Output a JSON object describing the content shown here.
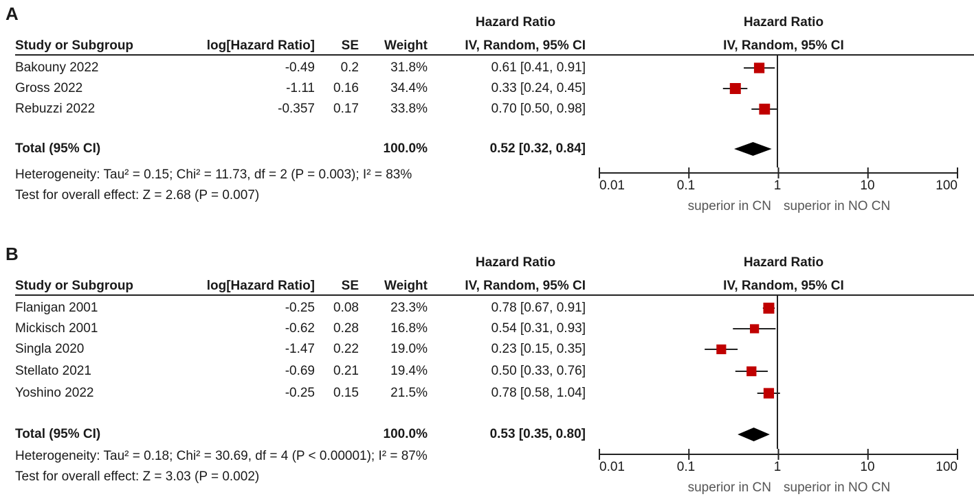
{
  "panels": [
    {
      "letter": "A",
      "header": {
        "hr_top": "Hazard Ratio",
        "study": "Study or Subgroup",
        "loghr": "log[Hazard Ratio]",
        "se": "SE",
        "weight": "Weight",
        "ci": "IV, Random, 95% CI",
        "plot_top": "Hazard Ratio",
        "plot_sub": "IV, Random, 95% CI"
      },
      "studies": [
        {
          "name": "Bakouny 2022",
          "loghr": "-0.49",
          "se": "0.2",
          "weight": "31.8%",
          "ci": "0.61 [0.41, 0.91]"
        },
        {
          "name": "Gross 2022",
          "loghr": "-1.11",
          "se": "0.16",
          "weight": "34.4%",
          "ci": "0.33 [0.24, 0.45]"
        },
        {
          "name": "Rebuzzi 2022",
          "loghr": "-0.357",
          "se": "0.17",
          "weight": "33.8%",
          "ci": "0.70 [0.50, 0.98]"
        }
      ],
      "total": {
        "label": "Total (95% CI)",
        "weight": "100.0%",
        "ci": "0.52 [0.32, 0.84]"
      },
      "heterogeneity": "Heterogeneity: Tau² = 0.15; Chi² = 11.73, df = 2 (P = 0.003); I² = 83%",
      "overall": "Test for overall effect: Z = 2.68 (P = 0.007)",
      "axis": {
        "ticks": [
          "0.01",
          "0.1",
          "1",
          "10",
          "100"
        ],
        "left_label": "superior in CN",
        "right_label": "superior in NO CN"
      }
    },
    {
      "letter": "B",
      "header": {
        "hr_top": "Hazard Ratio",
        "study": "Study or Subgroup",
        "loghr": "log[Hazard Ratio]",
        "se": "SE",
        "weight": "Weight",
        "ci": "IV, Random, 95% CI",
        "plot_top": "Hazard Ratio",
        "plot_sub": "IV, Random, 95% CI"
      },
      "studies": [
        {
          "name": "Flanigan 2001",
          "loghr": "-0.25",
          "se": "0.08",
          "weight": "23.3%",
          "ci": "0.78 [0.67, 0.91]"
        },
        {
          "name": "Mickisch 2001",
          "loghr": "-0.62",
          "se": "0.28",
          "weight": "16.8%",
          "ci": "0.54 [0.31, 0.93]"
        },
        {
          "name": "Singla 2020",
          "loghr": "-1.47",
          "se": "0.22",
          "weight": "19.0%",
          "ci": "0.23 [0.15, 0.35]"
        },
        {
          "name": "Stellato 2021",
          "loghr": "-0.69",
          "se": "0.21",
          "weight": "19.4%",
          "ci": "0.50 [0.33, 0.76]"
        },
        {
          "name": "Yoshino 2022",
          "loghr": "-0.25",
          "se": "0.15",
          "weight": "21.5%",
          "ci": "0.78 [0.58, 1.04]"
        }
      ],
      "total": {
        "label": "Total (95% CI)",
        "weight": "100.0%",
        "ci": "0.53 [0.35, 0.80]"
      },
      "heterogeneity": "Heterogeneity: Tau² = 0.18; Chi² = 30.69, df = 4 (P < 0.00001); I² = 87%",
      "overall": "Test for overall effect: Z = 3.03 (P = 0.002)",
      "axis": {
        "ticks": [
          "0.01",
          "0.1",
          "1",
          "10",
          "100"
        ],
        "left_label": "superior in CN",
        "right_label": "superior in NO CN"
      }
    }
  ],
  "colors": {
    "marker": "#c00000",
    "diamond": "#000000",
    "line": "#222222"
  },
  "chart_data": [
    {
      "type": "forest",
      "title": "A",
      "scale": "log",
      "xlim": [
        0.01,
        100
      ],
      "reference": 1,
      "studies": [
        {
          "name": "Bakouny 2022",
          "hr": 0.61,
          "lower": 0.41,
          "upper": 0.91,
          "weight": 31.8
        },
        {
          "name": "Gross 2022",
          "hr": 0.33,
          "lower": 0.24,
          "upper": 0.45,
          "weight": 34.4
        },
        {
          "name": "Rebuzzi 2022",
          "hr": 0.7,
          "lower": 0.5,
          "upper": 0.98,
          "weight": 33.8
        }
      ],
      "pooled": {
        "hr": 0.52,
        "lower": 0.32,
        "upper": 0.84
      }
    },
    {
      "type": "forest",
      "title": "B",
      "scale": "log",
      "xlim": [
        0.01,
        100
      ],
      "reference": 1,
      "studies": [
        {
          "name": "Flanigan 2001",
          "hr": 0.78,
          "lower": 0.67,
          "upper": 0.91,
          "weight": 23.3
        },
        {
          "name": "Mickisch 2001",
          "hr": 0.54,
          "lower": 0.31,
          "upper": 0.93,
          "weight": 16.8
        },
        {
          "name": "Singla 2020",
          "hr": 0.23,
          "lower": 0.15,
          "upper": 0.35,
          "weight": 19.0
        },
        {
          "name": "Stellato 2021",
          "hr": 0.5,
          "lower": 0.33,
          "upper": 0.76,
          "weight": 19.4
        },
        {
          "name": "Yoshino 2022",
          "hr": 0.78,
          "lower": 0.58,
          "upper": 1.04,
          "weight": 21.5
        }
      ],
      "pooled": {
        "hr": 0.53,
        "lower": 0.35,
        "upper": 0.8
      }
    }
  ]
}
